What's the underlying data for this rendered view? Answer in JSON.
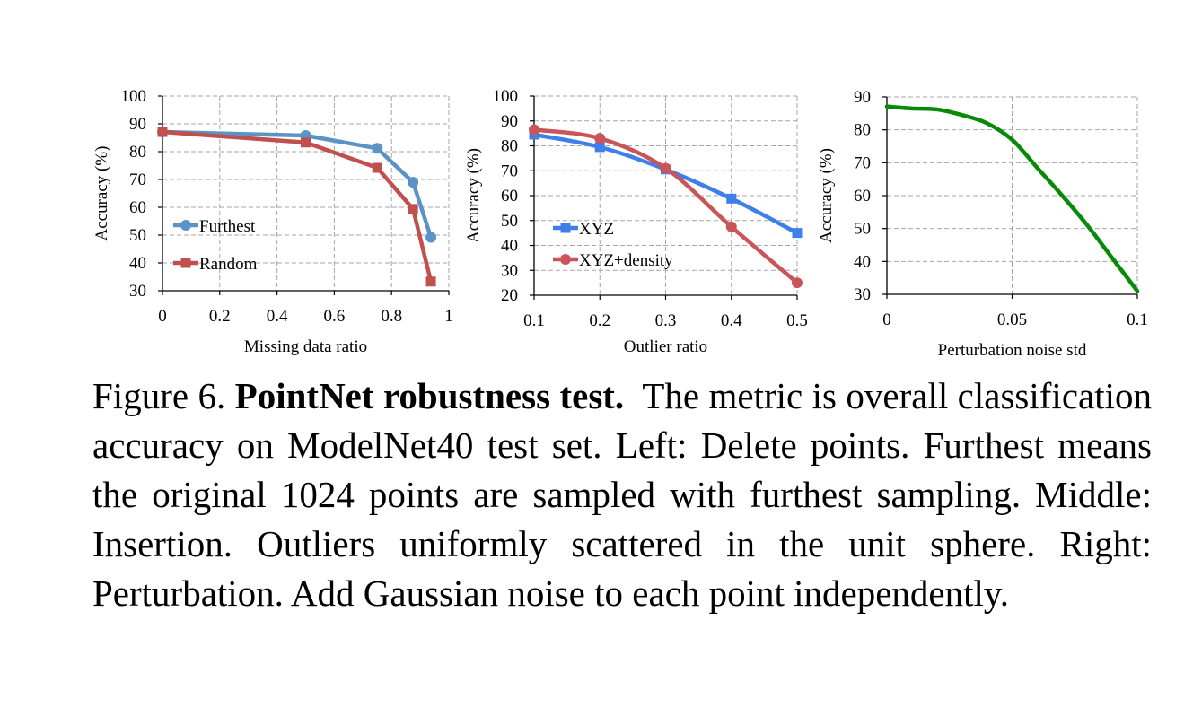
{
  "colors": {
    "furthest": "#5a93c6",
    "random": "#c0504d",
    "xyz": "#3f7fe9",
    "xyz_density": "#c9555a",
    "perturbation": "#078a07",
    "grid": "#a6a6a6"
  },
  "chart_data": [
    {
      "type": "line",
      "xlabel": "Missing data ratio",
      "ylabel": "Accuracy (%)",
      "xlim": [
        0,
        1
      ],
      "ylim": [
        30,
        100
      ],
      "xticks": [
        "0",
        "0.2",
        "0.4",
        "0.6",
        "0.8",
        "1"
      ],
      "xtick_values": [
        0,
        0.2,
        0.4,
        0.6,
        0.8,
        1
      ],
      "yticks": [
        "30",
        "40",
        "50",
        "60",
        "70",
        "80",
        "90",
        "100"
      ],
      "ytick_values": [
        30,
        40,
        50,
        60,
        70,
        80,
        90,
        100
      ],
      "grid": true,
      "legend_position": "bottom-left",
      "series": [
        {
          "name": "Furthest",
          "marker": "circle",
          "color": "#5a93c6",
          "x": [
            0,
            0.5,
            0.75,
            0.875,
            0.9375
          ],
          "y": [
            87.1,
            85.8,
            81.2,
            69.0,
            49.2
          ]
        },
        {
          "name": "Random",
          "marker": "square",
          "color": "#c0504d",
          "x": [
            0,
            0.5,
            0.75,
            0.875,
            0.9375
          ],
          "y": [
            87.1,
            83.3,
            74.2,
            59.4,
            33.3
          ]
        }
      ]
    },
    {
      "type": "line",
      "xlabel": "Outlier ratio",
      "ylabel": "Accuracy (%)",
      "xlim": [
        0.1,
        0.5
      ],
      "ylim": [
        20,
        100
      ],
      "xticks": [
        "0.1",
        "0.2",
        "0.3",
        "0.4",
        "0.5"
      ],
      "xtick_values": [
        0.1,
        0.2,
        0.3,
        0.4,
        0.5
      ],
      "yticks": [
        "20",
        "30",
        "40",
        "50",
        "60",
        "70",
        "80",
        "90",
        "100"
      ],
      "ytick_values": [
        20,
        30,
        40,
        50,
        60,
        70,
        80,
        90,
        100
      ],
      "grid": true,
      "legend_position": "bottom-left",
      "series": [
        {
          "name": "XYZ",
          "marker": "square",
          "color": "#3f7fe9",
          "x": [
            0.1,
            0.2,
            0.3,
            0.4,
            0.5
          ],
          "y": [
            84.5,
            79.5,
            70.5,
            58.8,
            45.0
          ]
        },
        {
          "name": "XYZ+density",
          "marker": "circle",
          "color": "#c9555a",
          "x": [
            0.1,
            0.2,
            0.3,
            0.4,
            0.5
          ],
          "y": [
            86.5,
            83.0,
            71.0,
            47.5,
            25.0
          ]
        }
      ]
    },
    {
      "type": "line",
      "xlabel": "Perturbation noise std",
      "ylabel": "Accuracy (%)",
      "xlim": [
        0,
        0.1
      ],
      "ylim": [
        30,
        90
      ],
      "xticks": [
        "0",
        "0.05",
        "0.1"
      ],
      "xtick_values": [
        0,
        0.05,
        0.1
      ],
      "yticks": [
        "30",
        "40",
        "50",
        "60",
        "70",
        "80",
        "90"
      ],
      "ytick_values": [
        30,
        40,
        50,
        60,
        70,
        80,
        90
      ],
      "grid": true,
      "series": [
        {
          "color": "#078a07",
          "x": [
            0,
            0.01,
            0.02,
            0.03,
            0.04,
            0.05,
            0.06,
            0.07,
            0.08,
            0.09,
            0.1
          ],
          "y": [
            87.1,
            86.5,
            86.2,
            84.5,
            82.0,
            77.0,
            68.5,
            60.0,
            51.0,
            41.0,
            31.0
          ]
        }
      ]
    }
  ],
  "caption": {
    "label": "Figure 6.",
    "title": "PointNet robustness test.",
    "text": "The metric is overall classification accuracy on ModelNet40 test set. Left: Delete points. Furthest means the original 1024 points are sampled with furthest sampling. Middle: Insertion. Outliers uniformly scattered in the unit sphere. Right: Perturbation. Add Gaussian noise to each point independently."
  }
}
